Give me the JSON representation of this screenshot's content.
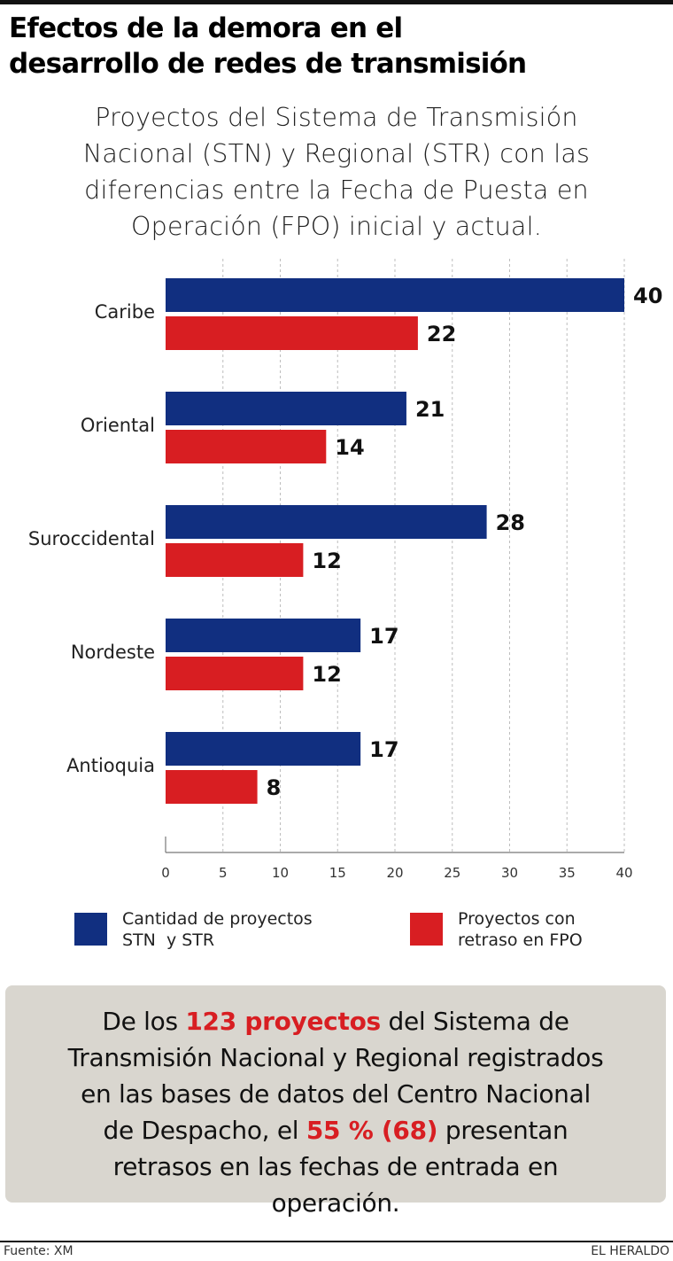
{
  "header": {
    "title_line1": "Efectos de la demora en el",
    "title_line2": "desarrollo de redes de transmisión",
    "subtitle_lines": [
      "Proyectos del Sistema de Transmisión",
      "Nacional (STN) y Regional (STR) con las",
      "diferencias entre la Fecha de Puesta en",
      "Operación (FPO) inicial y actual."
    ]
  },
  "chart_data": {
    "type": "bar",
    "orientation": "horizontal",
    "title": "Proyectos del Sistema de Transmisión Nacional (STN) y Regional (STR) con las diferencias entre la Fecha de Puesta en Operación (FPO) inicial y actual.",
    "categories": [
      "Caribe",
      "Oriental",
      "Suroccidental",
      "Nordeste",
      "Antioquia"
    ],
    "series": [
      {
        "name": "Cantidad de proyectos STN  y STR",
        "color": "#112f80",
        "values": [
          40,
          21,
          28,
          17,
          17
        ]
      },
      {
        "name": "Proyectos con retraso en FPO",
        "color": "#d81e22",
        "values": [
          22,
          14,
          12,
          12,
          8
        ]
      }
    ],
    "xlim": [
      0,
      40
    ],
    "xticks": [
      0,
      5,
      10,
      15,
      20,
      25,
      30,
      35,
      40
    ],
    "xlabel": "",
    "ylabel": "",
    "grid": true,
    "grid_style": "dashed vertical",
    "data_labels": true,
    "legend_position": "bottom"
  },
  "legend": {
    "items": [
      {
        "label": "Cantidad de proyectos\nSTN  y STR",
        "color": "#112f80"
      },
      {
        "label": "Proyectos con\nretraso en FPO",
        "color": "#d81e22"
      }
    ]
  },
  "summary": {
    "line1_pre": "De los ",
    "line1_highlight": "123 proyectos",
    "line1_post": " del Sistema de",
    "line2": "Transmisión Nacional y Regional registrados",
    "line3": "en las bases de datos del Centro Nacional",
    "line4_pre": "de Despacho, el ",
    "line4_highlight": "55 % (68)",
    "line4_post": " presentan",
    "line5": "retrasos en las fechas de entrada en",
    "line6": "operación.",
    "highlight_color": "#d81e22",
    "background_color": "#d9d6cf"
  },
  "footer": {
    "source": "Fuente: XM",
    "brand": "EL HERALDO"
  }
}
